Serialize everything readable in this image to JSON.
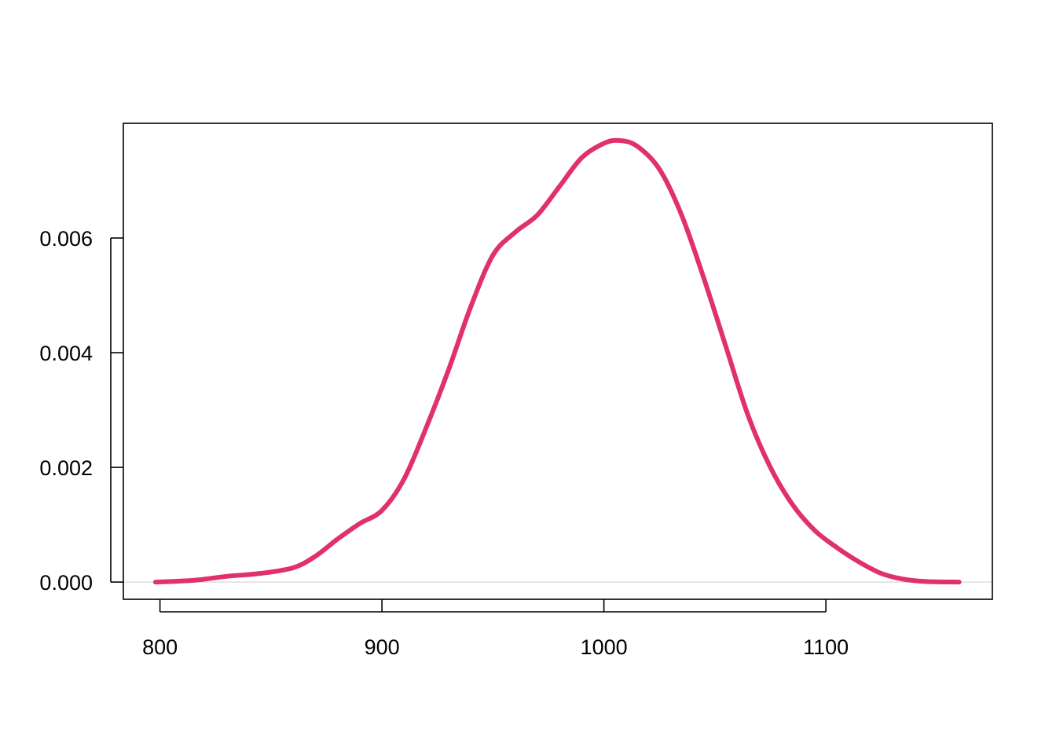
{
  "chart_data": {
    "type": "line",
    "title": "",
    "xlabel": "",
    "ylabel": "",
    "xlim": [
      783.5,
      1175
    ],
    "ylim": [
      -0.0003,
      0.008
    ],
    "x_ticks": [
      800,
      900,
      1000,
      1100
    ],
    "x_tick_labels": [
      "800",
      "900",
      "1000",
      "1100"
    ],
    "y_ticks": [
      0,
      0.002,
      0.004,
      0.006
    ],
    "y_tick_labels": [
      "0.000",
      "0.002",
      "0.004",
      "0.006"
    ],
    "grid": false,
    "baseline_y": 0,
    "colors": {
      "line": "#e0306e",
      "baseline": "#d9d9d9",
      "axis": "#000000"
    },
    "series": [
      {
        "x": [
          798,
          815,
          830,
          845,
          860,
          870,
          880,
          890,
          900,
          910,
          920,
          930,
          940,
          950,
          960,
          970,
          980,
          990,
          1000,
          1007,
          1015,
          1025,
          1035,
          1045,
          1055,
          1065,
          1075,
          1085,
          1095,
          1105,
          1115,
          1125,
          1135,
          1145,
          1160
        ],
        "y": [
          0.0,
          3e-05,
          0.0001,
          0.00015,
          0.00025,
          0.00045,
          0.00075,
          0.00102,
          0.00125,
          0.0018,
          0.0027,
          0.0037,
          0.0048,
          0.0057,
          0.0061,
          0.0064,
          0.0069,
          0.0074,
          0.00765,
          0.0077,
          0.0076,
          0.0072,
          0.0064,
          0.0053,
          0.0041,
          0.0029,
          0.002,
          0.00135,
          0.0009,
          0.0006,
          0.00035,
          0.00015,
          5e-05,
          1e-05,
          0.0
        ]
      }
    ]
  }
}
